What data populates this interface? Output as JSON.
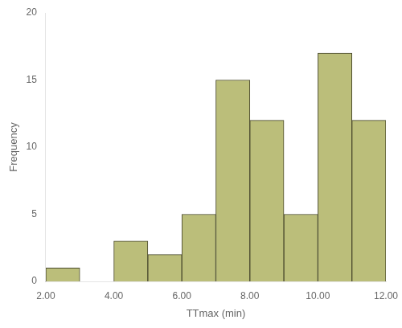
{
  "chart_data": {
    "type": "histogram",
    "bins": [
      2.0,
      3.0,
      4.0,
      5.0,
      6.0,
      7.0,
      8.0,
      9.0,
      10.0,
      11.0,
      12.0
    ],
    "values": [
      1,
      0,
      3,
      2,
      5,
      15,
      12,
      5,
      17,
      12
    ],
    "color": "#bbbe7a",
    "xlabel": "TTmax (min)",
    "ylabel": "Frequency",
    "xlim": [
      2.0,
      12.0
    ],
    "ylim": [
      0,
      20
    ],
    "xticks": [
      {
        "value": 2.0,
        "label": "2.00"
      },
      {
        "value": 4.0,
        "label": "4.00"
      },
      {
        "value": 6.0,
        "label": "6.00"
      },
      {
        "value": 8.0,
        "label": "8.00"
      },
      {
        "value": 10.0,
        "label": "10.00"
      },
      {
        "value": 12.0,
        "label": "12.00"
      }
    ],
    "yticks": [
      0,
      5,
      10,
      15,
      20
    ],
    "grid": false
  }
}
